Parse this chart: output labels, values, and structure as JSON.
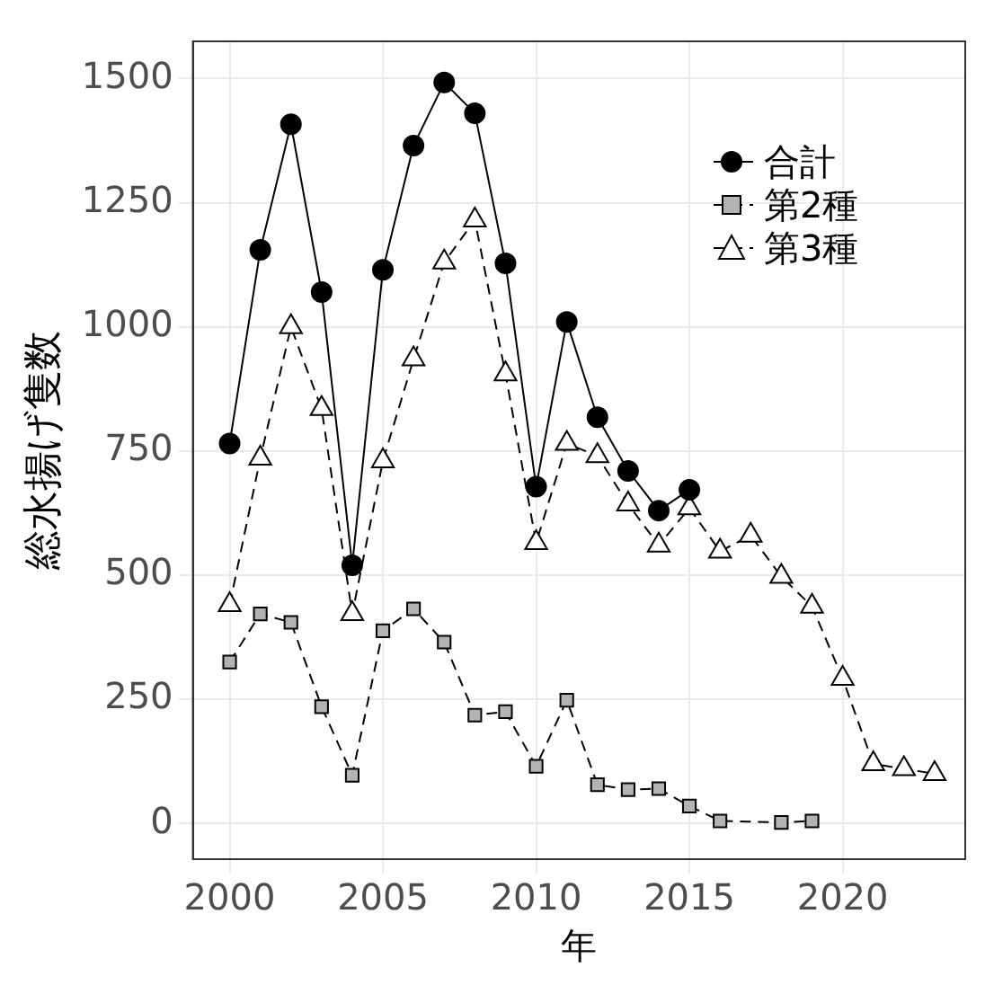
{
  "chart_data": {
    "type": "line",
    "xlabel": "年",
    "ylabel": "総水揚げ隻数",
    "xlim": [
      1998.8,
      2024
    ],
    "xticks": [
      2000,
      2005,
      2010,
      2015,
      2020
    ],
    "ylim": [
      -72,
      1575
    ],
    "yticks": [
      0,
      250,
      500,
      750,
      1000,
      1250,
      1500
    ],
    "grid": true,
    "legend": "top right",
    "series": [
      {
        "name": "合計",
        "color": "#000000",
        "marker": "circle",
        "line_style": "solid",
        "x": [
          2000,
          2001,
          2002,
          2003,
          2004,
          2005,
          2006,
          2007,
          2008,
          2009,
          2010,
          2011,
          2012,
          2013,
          2014,
          2015
        ],
        "values": [
          765,
          1155,
          1408,
          1070,
          520,
          1115,
          1365,
          1492,
          1430,
          1128,
          678,
          1010,
          818,
          710,
          630,
          672
        ]
      },
      {
        "name": "第2種",
        "color": "#b3b3b3",
        "marker": "square",
        "line_style": "dashed",
        "x": [
          2000,
          2001,
          2002,
          2003,
          2004,
          2005,
          2006,
          2007,
          2008,
          2009,
          2010,
          2011,
          2012,
          2013,
          2014,
          2015,
          2016,
          2018,
          2019
        ],
        "values": [
          325,
          422,
          405,
          235,
          97,
          388,
          432,
          365,
          218,
          225,
          115,
          248,
          78,
          68,
          70,
          35,
          5,
          2,
          5
        ]
      },
      {
        "name": "第3種",
        "color": "#ffffff",
        "marker": "triangle",
        "line_style": "dashed",
        "x": [
          2000,
          2001,
          2002,
          2003,
          2004,
          2005,
          2006,
          2007,
          2008,
          2009,
          2010,
          2011,
          2012,
          2013,
          2014,
          2015,
          2016,
          2017,
          2018,
          2019,
          2020,
          2021,
          2022,
          2023
        ],
        "values": [
          440,
          735,
          1000,
          835,
          422,
          730,
          935,
          1130,
          1215,
          905,
          565,
          765,
          740,
          643,
          560,
          635,
          548,
          580,
          497,
          437,
          292,
          120,
          110,
          100
        ]
      }
    ]
  }
}
